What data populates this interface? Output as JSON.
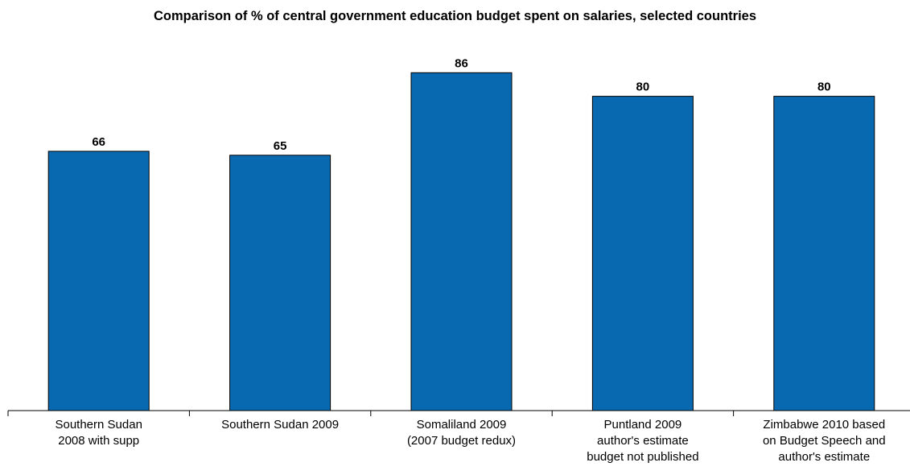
{
  "chart_data": {
    "type": "bar",
    "title": "Comparison of % of central government education budget spent on salaries, selected countries",
    "categories": [
      [
        "Southern Sudan",
        "2008 with supp"
      ],
      [
        "Southern Sudan 2009"
      ],
      [
        "Somaliland 2009",
        "(2007 budget redux)"
      ],
      [
        "Puntland 2009",
        "author's estimate",
        "budget not published"
      ],
      [
        "Zimbabwe 2010 based",
        "on Budget Speech and",
        "author's estimate"
      ]
    ],
    "values": [
      66,
      65,
      86,
      80,
      80
    ],
    "data_labels": [
      "66",
      "65",
      "86",
      "80",
      "80"
    ],
    "xlabel": "",
    "ylabel": "",
    "ylim": [
      0,
      100
    ],
    "grid": false,
    "legend": "none",
    "bar_color": "#0868B0",
    "bar_edge_color": "#000000"
  }
}
